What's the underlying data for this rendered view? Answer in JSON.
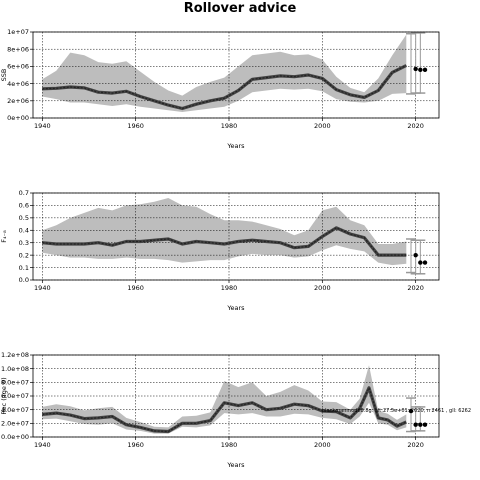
{
  "title": "Rollover advice",
  "colors": {
    "band": "#bdbdbd",
    "line": "#000000",
    "grid": "#000000",
    "hist": "#444444"
  },
  "chart_data": [
    {
      "type": "line",
      "ylabel": "SSB",
      "xlabel": "Years",
      "xlim": [
        1938,
        2025
      ],
      "ylim": [
        0,
        10000000
      ],
      "xticks": [
        1940,
        1960,
        1980,
        2000,
        2020
      ],
      "yticks": [
        0,
        2000000,
        4000000,
        6000000,
        8000000,
        10000000
      ],
      "yticklabels": [
        "0e+00",
        "2e+06",
        "4e+06",
        "6e+06",
        "8e+06",
        "1e+07"
      ],
      "grid": true,
      "x": [
        1940,
        1943,
        1946,
        1949,
        1952,
        1955,
        1958,
        1961,
        1964,
        1967,
        1970,
        1973,
        1976,
        1979,
        1982,
        1985,
        1988,
        1991,
        1994,
        1997,
        2000,
        2003,
        2006,
        2009,
        2012,
        2015,
        2018
      ],
      "series": [
        {
          "values": [
            3400000,
            3450000,
            3600000,
            3500000,
            3000000,
            2900000,
            3100000,
            2500000,
            2000000,
            1500000,
            1100000,
            1600000,
            2000000,
            2300000,
            3200000,
            4500000,
            4700000,
            4900000,
            4800000,
            5000000,
            4600000,
            3300000,
            2700000,
            2400000,
            3200000,
            5300000,
            6100000
          ]
        }
      ],
      "lower": [
        2500000,
        2200000,
        1800000,
        1800000,
        1600000,
        1400000,
        1600000,
        1300000,
        1100000,
        900000,
        700000,
        900000,
        1100000,
        1300000,
        2000000,
        3000000,
        3200000,
        3400000,
        3300000,
        3400000,
        3100000,
        2200000,
        1900000,
        1800000,
        2000000,
        2800000,
        2900000
      ],
      "upper": [
        4500000,
        5500000,
        7600000,
        7300000,
        6500000,
        6300000,
        6600000,
        5400000,
        4200000,
        3200000,
        2600000,
        3600000,
        4200000,
        4700000,
        6000000,
        7300000,
        7500000,
        7700000,
        7300000,
        7400000,
        6800000,
        4800000,
        3500000,
        3000000,
        4600000,
        7300000,
        9700000
      ],
      "advice_points": {
        "x": [
          2020,
          2021,
          2022
        ],
        "y": [
          5700000,
          5600000,
          5600000
        ]
      },
      "advice_bars": {
        "x": [
          2019,
          2020,
          2021
        ],
        "low": [
          2800000,
          2900000,
          2900000
        ],
        "high": [
          9800000,
          9900000,
          9900000
        ]
      }
    },
    {
      "type": "line",
      "ylabel": "F₄₋₈",
      "xlabel": "Years",
      "xlim": [
        1938,
        2025
      ],
      "ylim": [
        0,
        0.7
      ],
      "xticks": [
        1940,
        1960,
        1980,
        2000,
        2020
      ],
      "yticks": [
        0,
        0.1,
        0.2,
        0.3,
        0.4,
        0.5,
        0.6,
        0.7
      ],
      "yticklabels": [
        "0.0",
        "0.1",
        "0.2",
        "0.3",
        "0.4",
        "0.5",
        "0.6",
        "0.7"
      ],
      "grid": true,
      "x": [
        1940,
        1943,
        1946,
        1949,
        1952,
        1955,
        1958,
        1961,
        1964,
        1967,
        1970,
        1973,
        1976,
        1979,
        1982,
        1985,
        1988,
        1991,
        1994,
        1997,
        2000,
        2003,
        2006,
        2009,
        2012,
        2015,
        2018
      ],
      "series": [
        {
          "values": [
            0.3,
            0.29,
            0.29,
            0.29,
            0.3,
            0.28,
            0.31,
            0.31,
            0.32,
            0.33,
            0.29,
            0.31,
            0.3,
            0.29,
            0.31,
            0.32,
            0.31,
            0.3,
            0.26,
            0.27,
            0.35,
            0.42,
            0.37,
            0.34,
            0.2,
            0.2,
            0.2
          ]
        }
      ],
      "lower": [
        0.22,
        0.2,
        0.18,
        0.18,
        0.17,
        0.17,
        0.18,
        0.17,
        0.17,
        0.16,
        0.14,
        0.15,
        0.16,
        0.16,
        0.19,
        0.21,
        0.2,
        0.2,
        0.18,
        0.19,
        0.24,
        0.28,
        0.25,
        0.23,
        0.14,
        0.12,
        0.13
      ],
      "upper": [
        0.4,
        0.44,
        0.5,
        0.54,
        0.58,
        0.56,
        0.6,
        0.61,
        0.63,
        0.66,
        0.6,
        0.59,
        0.53,
        0.48,
        0.48,
        0.47,
        0.44,
        0.41,
        0.36,
        0.4,
        0.56,
        0.59,
        0.48,
        0.44,
        0.29,
        0.29,
        0.31
      ],
      "advice_points": {
        "x": [
          2020,
          2021,
          2022
        ],
        "y": [
          0.2,
          0.14,
          0.14
        ]
      },
      "advice_bars": {
        "x": [
          2019,
          2020,
          2021
        ],
        "low": [
          0.06,
          0.05,
          0.05
        ],
        "high": [
          0.33,
          0.32,
          0.32
        ]
      }
    },
    {
      "type": "line",
      "ylabel": "Rec (age 0)",
      "xlabel": "Years",
      "xlim": [
        1938,
        2025
      ],
      "ylim": [
        0,
        120000000
      ],
      "xticks": [
        1940,
        1960,
        1980,
        2000,
        2020
      ],
      "yticks": [
        0,
        20000000,
        40000000,
        60000000,
        80000000,
        100000000,
        120000000
      ],
      "yticklabels": [
        "0.0e+00",
        "2.0e+07",
        "4.0e+07",
        "6.0e+07",
        "8.0e+07",
        "1.0e+08",
        "1.2e+08"
      ],
      "grid": true,
      "x": [
        1940,
        1943,
        1946,
        1949,
        1952,
        1955,
        1958,
        1961,
        1964,
        1967,
        1970,
        1973,
        1976,
        1979,
        1982,
        1985,
        1988,
        1991,
        1994,
        1997,
        2000,
        2003,
        2006,
        2008,
        2010,
        2012,
        2014,
        2016,
        2018
      ],
      "series": [
        {
          "values": [
            33000000,
            35000000,
            32000000,
            27000000,
            28000000,
            30000000,
            18000000,
            14000000,
            9000000,
            8000000,
            20000000,
            20000000,
            24000000,
            50000000,
            46000000,
            50000000,
            40000000,
            42000000,
            48000000,
            46000000,
            38000000,
            37000000,
            28000000,
            42000000,
            72000000,
            28000000,
            25000000,
            16000000,
            22000000
          ]
        }
      ],
      "lower": [
        26000000,
        27000000,
        23000000,
        19000000,
        18000000,
        20000000,
        11000000,
        9000000,
        5000000,
        5000000,
        15000000,
        14000000,
        17000000,
        35000000,
        33000000,
        35000000,
        30000000,
        30000000,
        34000000,
        33000000,
        28000000,
        26000000,
        19000000,
        30000000,
        50000000,
        20000000,
        18000000,
        10000000,
        14000000
      ],
      "upper": [
        44000000,
        48000000,
        45000000,
        39000000,
        42000000,
        44000000,
        28000000,
        22000000,
        15000000,
        14000000,
        30000000,
        31000000,
        36000000,
        82000000,
        73000000,
        80000000,
        60000000,
        66000000,
        76000000,
        68000000,
        52000000,
        51000000,
        40000000,
        56000000,
        105000000,
        38000000,
        34000000,
        25000000,
        33000000
      ],
      "advice_points": {
        "x": [
          2019,
          2020,
          2021,
          2022
        ],
        "y": [
          38000000,
          18000000,
          18000000,
          18000000
        ]
      },
      "advice_bars": {
        "x": [
          2019,
          2020,
          2021
        ],
        "low": [
          8000000,
          9000000,
          9000000
        ],
        "high": [
          57000000,
          44000000,
          44000000
        ]
      },
      "annotation": "blackmanmode8.8g. alt:27.5e+01. 2020, n 2461 , gll: 6262"
    }
  ]
}
